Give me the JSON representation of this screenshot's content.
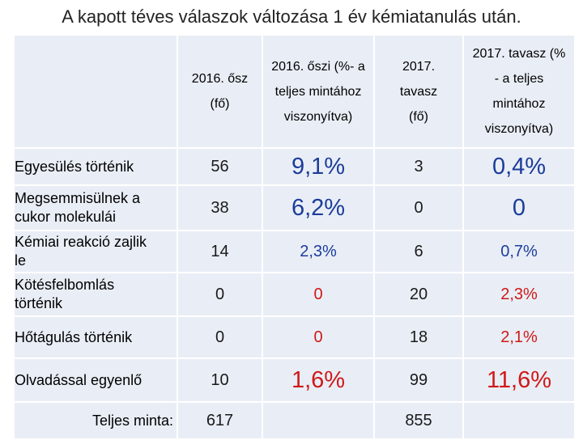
{
  "title": "A kapott téves válaszok változása 1 év kémiatanulás után.",
  "headers": [
    [
      "2016. ősz",
      "(fő)"
    ],
    [
      "2016. őszi (%- a",
      "teljes mintához",
      "viszonyítva)"
    ],
    [
      "2017.",
      "tavasz",
      "(fő)"
    ],
    [
      "2017. tavasz (%",
      "- a teljes",
      "mintához",
      "viszonyítva)"
    ]
  ],
  "rows": [
    {
      "label": [
        "Egyesülés történik"
      ],
      "c1": "56",
      "c2": "9,1%",
      "c3": "3",
      "c4": "0,4%"
    },
    {
      "label": [
        "Megsemmisülnek a",
        "cukor molekulái"
      ],
      "c1": "38",
      "c2": "6,2%",
      "c3": "0",
      "c4": "0"
    },
    {
      "label": [
        "Kémiai reakció zajlik",
        "le"
      ],
      "c1": "14",
      "c2": "2,3%",
      "c3": "6",
      "c4": "0,7%"
    },
    {
      "label": [
        "Kötésfelbomlás",
        "történik"
      ],
      "c1": "0",
      "c2": "0",
      "c3": "20",
      "c4": "2,3%"
    },
    {
      "label": [
        "Hőtágulás történik"
      ],
      "c1": "0",
      "c2": "0",
      "c3": "18",
      "c4": "2,1%"
    },
    {
      "label": [
        "Olvadással egyenlő"
      ],
      "c1": "10",
      "c2": "1,6%",
      "c3": "99",
      "c4": "11,6%"
    }
  ],
  "totals": {
    "label": "Teljes minta:",
    "c1": "617",
    "c3": "855"
  },
  "colors": {
    "cell_bg": "#e9eef6",
    "red": "#d01818",
    "blue": "#1c3c9c"
  }
}
